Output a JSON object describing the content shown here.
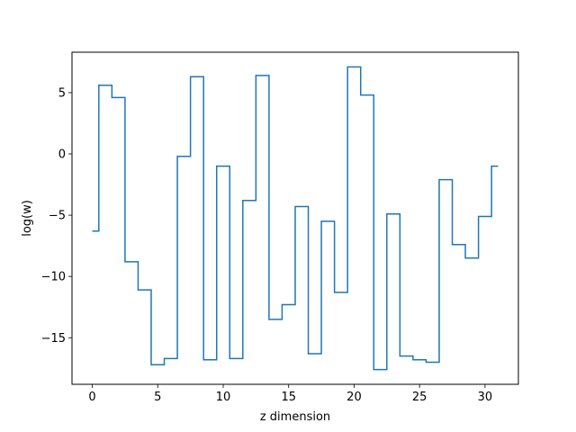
{
  "chart_data": {
    "type": "line",
    "drawstyle": "steps-mid",
    "xlabel": "z dimension",
    "ylabel": "log(w)",
    "xlim": [
      -1.55,
      32.55
    ],
    "ylim": [
      -18.8,
      8.3
    ],
    "xticks": [
      0,
      5,
      10,
      15,
      20,
      25,
      30
    ],
    "xtick_labels": [
      "0",
      "5",
      "10",
      "15",
      "20",
      "25",
      "30"
    ],
    "yticks": [
      5,
      0,
      -5,
      -10,
      -15
    ],
    "ytick_labels": [
      "5",
      "0",
      "−5",
      "−10",
      "−15"
    ],
    "grid": false,
    "legend": "none",
    "line_color": "#1f77b4",
    "series": [
      {
        "x": [
          0,
          1,
          2,
          3,
          4,
          5,
          6,
          7,
          8,
          9,
          10,
          11,
          12,
          13,
          14,
          15,
          16,
          17,
          18,
          19,
          20,
          21,
          22,
          23,
          24,
          25,
          26,
          27,
          28,
          29,
          30,
          31
        ],
        "y": [
          -6.3,
          5.6,
          4.6,
          -8.8,
          -11.1,
          -17.2,
          -16.7,
          -0.2,
          6.3,
          -16.8,
          -1.0,
          -16.7,
          -3.8,
          6.4,
          -13.5,
          -12.3,
          -4.3,
          -16.3,
          -5.5,
          -11.3,
          7.1,
          4.8,
          -17.6,
          -4.9,
          -16.5,
          -16.8,
          -17.0,
          -2.1,
          -7.4,
          -8.5,
          -5.1,
          -1.0
        ]
      }
    ]
  }
}
